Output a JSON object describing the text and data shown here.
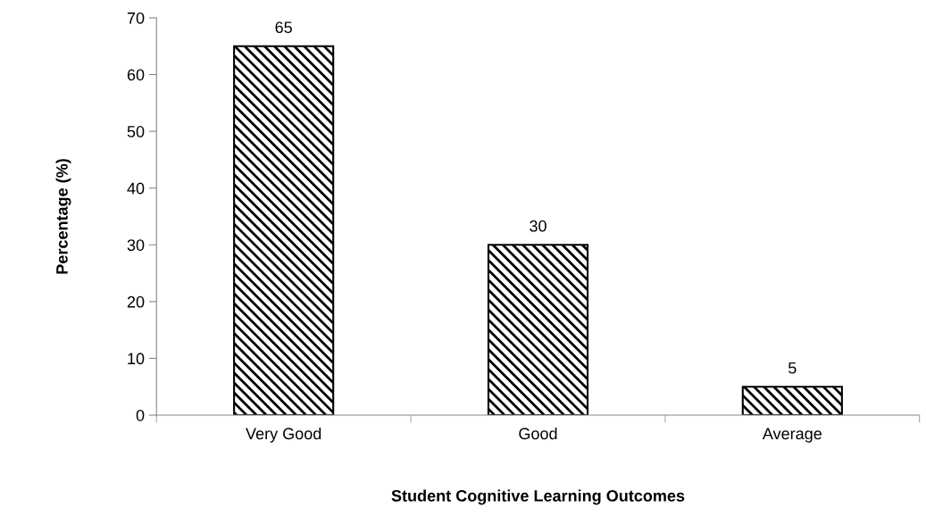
{
  "chart_data": {
    "type": "bar",
    "xlabel": "Student Cognitive Learning Outcomes",
    "ylabel": "Percentage (%)",
    "categories": [
      "Very Good",
      "Good",
      "Average"
    ],
    "values": [
      65,
      30,
      5
    ],
    "color": "#000000",
    "ylim": [
      0,
      70
    ],
    "yticks": [
      0,
      10,
      20,
      30,
      40,
      50,
      60,
      70
    ],
    "data_labels": true,
    "grid": false,
    "legend": false
  }
}
